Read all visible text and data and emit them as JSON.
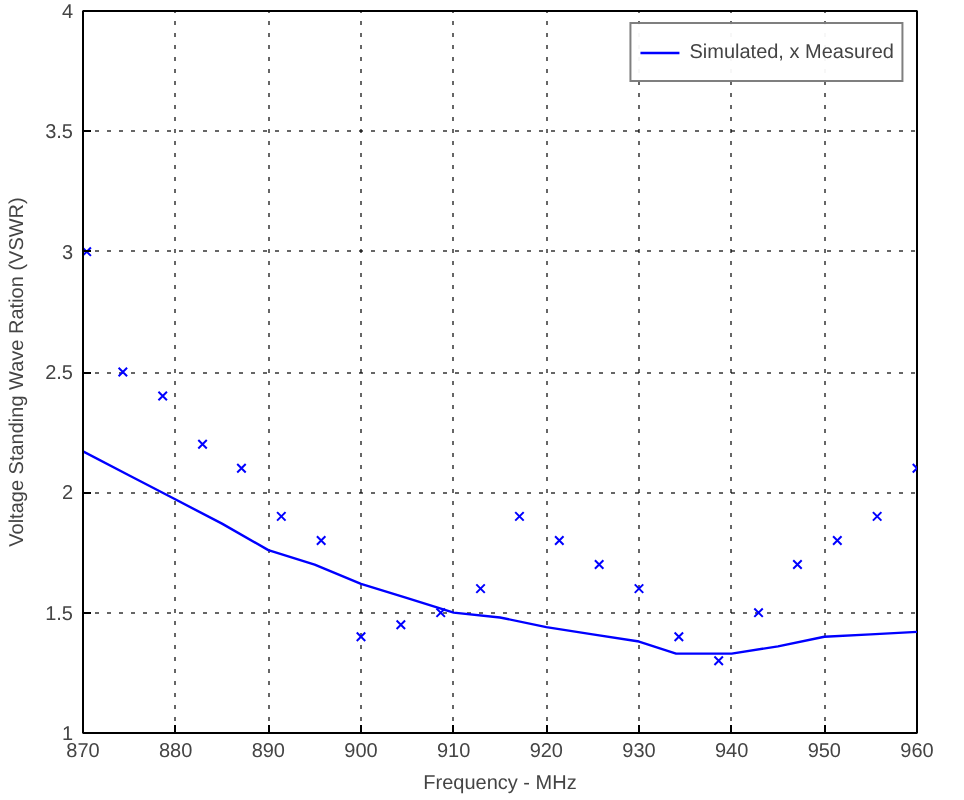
{
  "chart_data": {
    "type": "line",
    "xlabel": "Frequency - MHz",
    "ylabel": "Voltage Standing Wave Ration (VSWR)",
    "xlim": [
      870,
      960
    ],
    "xticks": [
      870,
      880,
      890,
      900,
      910,
      920,
      930,
      940,
      950,
      960
    ],
    "ylim": [
      1,
      4
    ],
    "yticks": [
      1,
      1.5,
      2,
      2.5,
      3,
      3.5,
      4
    ],
    "grid": true,
    "legend": "top right",
    "series": [
      {
        "name": "Simulated, x Measured",
        "color": "#0000ff",
        "marker": "none",
        "line_style": "solid",
        "x": [
          870,
          875,
          880,
          885,
          890,
          895,
          900,
          905,
          910,
          915,
          920,
          925,
          930,
          934,
          940,
          945,
          950,
          955,
          960
        ],
        "values": [
          2.17,
          2.07,
          1.97,
          1.87,
          1.76,
          1.7,
          1.62,
          1.56,
          1.5,
          1.48,
          1.44,
          1.41,
          1.38,
          1.33,
          1.33,
          1.36,
          1.4,
          1.41,
          1.42
        ]
      },
      {
        "type": "scatter",
        "color": "#0000ff",
        "marker": "cross",
        "x": [
          870.4,
          874.3,
          878.6,
          882.9,
          887.1,
          891.4,
          895.7,
          900,
          904.3,
          908.6,
          912.9,
          917.1,
          921.4,
          925.7,
          930,
          934.3,
          938.6,
          942.9,
          947.1,
          951.4,
          955.7,
          960
        ],
        "values": [
          3.0,
          2.5,
          2.4,
          2.2,
          2.1,
          1.9,
          1.8,
          1.4,
          1.45,
          1.5,
          1.6,
          1.9,
          1.8,
          1.7,
          1.6,
          1.4,
          1.3,
          1.5,
          1.7,
          1.8,
          1.9,
          2.1
        ]
      }
    ]
  }
}
